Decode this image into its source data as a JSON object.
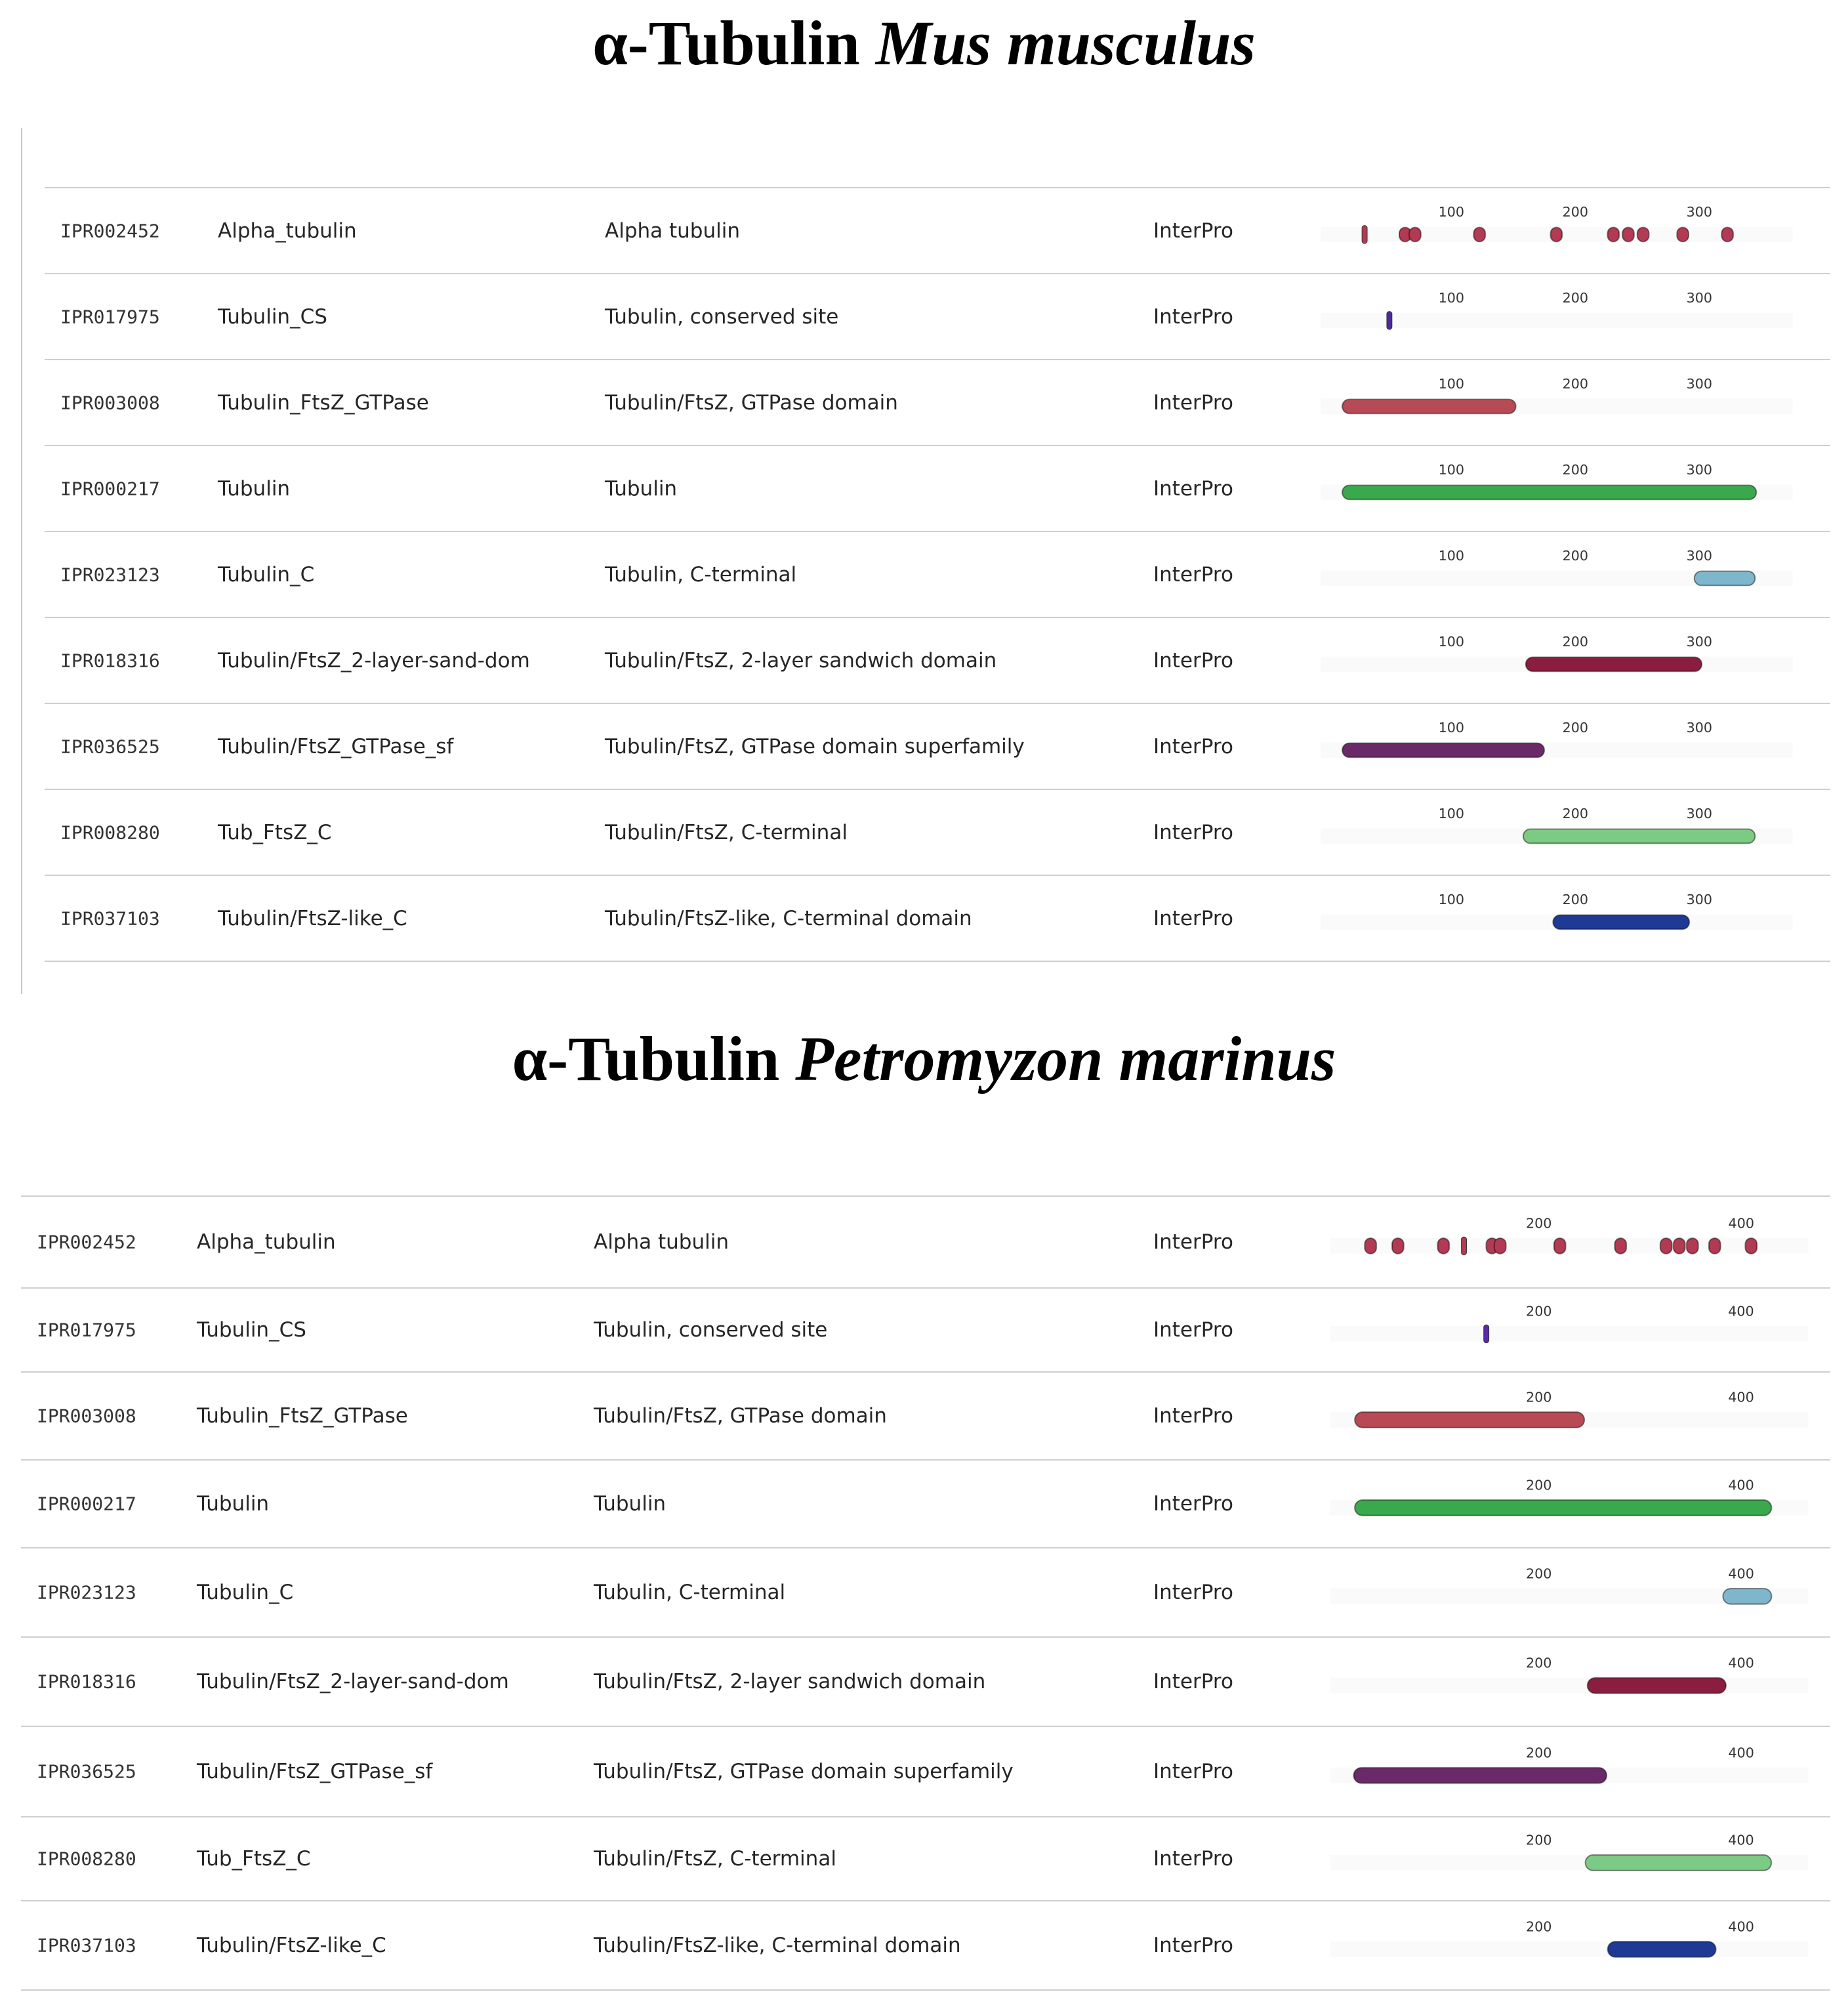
{
  "panels": [
    {
      "title_main": "α-Tubulin",
      "title_species": "Mus musculus",
      "ticks": [
        100,
        200,
        300
      ],
      "protein_length": 370,
      "source_rows": [
        {
          "accession": "IPR002452",
          "short_name": "Alpha_tubulin",
          "description": "Alpha tubulin",
          "source": "InterPro",
          "color": "#b23a52",
          "segments": [
            [
              30,
              31
            ],
            [
              58,
              62
            ],
            [
              66,
              70
            ],
            [
              118,
              121
            ],
            [
              180,
              184
            ],
            [
              226,
              231
            ],
            [
              238,
              245
            ],
            [
              250,
              258
            ],
            [
              282,
              286
            ],
            [
              318,
              322
            ]
          ]
        },
        {
          "accession": "IPR017975",
          "short_name": "Tubulin_CS",
          "description": "Tubulin, conserved site",
          "source": "InterPro",
          "color": "#4a2a9e",
          "segments": [
            [
              50,
              51
            ]
          ]
        },
        {
          "accession": "IPR003008",
          "short_name": "Tubulin_FtsZ_GTPase",
          "description": "Tubulin/FtsZ, GTPase domain",
          "source": "InterPro",
          "color": "#b84a55",
          "segments": [
            [
              12,
              152
            ]
          ]
        },
        {
          "accession": "IPR000217",
          "short_name": "Tubulin",
          "description": "Tubulin",
          "source": "InterPro",
          "color": "#3aa84c",
          "segments": [
            [
              12,
              346
            ]
          ]
        },
        {
          "accession": "IPR023123",
          "short_name": "Tubulin_C",
          "description": "Tubulin, C-terminal",
          "source": "InterPro",
          "color": "#7eb6cc",
          "segments": [
            [
              296,
              345
            ]
          ]
        },
        {
          "accession": "IPR018316",
          "short_name": "Tubulin/FtsZ_2-layer-sand-dom",
          "description": "Tubulin/FtsZ, 2-layer sandwich domain",
          "source": "InterPro",
          "color": "#8a1e40",
          "segments": [
            [
              160,
              302
            ]
          ]
        },
        {
          "accession": "IPR036525",
          "short_name": "Tubulin/FtsZ_GTPase_sf",
          "description": "Tubulin/FtsZ, GTPase domain superfamily",
          "source": "InterPro",
          "color": "#6a2a6a",
          "segments": [
            [
              12,
              175
            ]
          ]
        },
        {
          "accession": "IPR008280",
          "short_name": "Tub_FtsZ_C",
          "description": "Tubulin/FtsZ, C-terminal",
          "source": "InterPro",
          "color": "#7ccb84",
          "segments": [
            [
              158,
              345
            ]
          ]
        },
        {
          "accession": "IPR037103",
          "short_name": "Tubulin/FtsZ-like_C",
          "description": "Tubulin/FtsZ-like, C-terminal domain",
          "source": "InterPro",
          "color": "#1e3a94",
          "segments": [
            [
              182,
              292
            ]
          ]
        }
      ]
    },
    {
      "title_main": "α-Tubulin",
      "title_species": "Petromyzon marinus",
      "ticks": [
        200,
        400
      ],
      "protein_length": 460,
      "source_rows": [
        {
          "accession": "IPR002452",
          "short_name": "Alpha_tubulin",
          "description": "Alpha tubulin",
          "source": "InterPro",
          "color": "#b23a52",
          "segments": [
            [
              28,
              34
            ],
            [
              55,
              61
            ],
            [
              100,
              105
            ],
            [
              126,
              127
            ],
            [
              148,
              155
            ],
            [
              156,
              160
            ],
            [
              215,
              219
            ],
            [
              275,
              280
            ],
            [
              320,
              330
            ],
            [
              333,
              342
            ],
            [
              346,
              354
            ],
            [
              368,
              374
            ],
            [
              404,
              412
            ]
          ]
        },
        {
          "accession": "IPR017975",
          "short_name": "Tubulin_CS",
          "description": "Tubulin, conserved site",
          "source": "InterPro",
          "color": "#5a2aa8",
          "segments": [
            [
              148,
              149
            ]
          ]
        },
        {
          "accession": "IPR003008",
          "short_name": "Tubulin_FtsZ_GTPase",
          "description": "Tubulin/FtsZ, GTPase domain",
          "source": "InterPro",
          "color": "#b84a55",
          "segments": [
            [
              18,
              245
            ]
          ]
        },
        {
          "accession": "IPR000217",
          "short_name": "Tubulin",
          "description": "Tubulin",
          "source": "InterPro",
          "color": "#3aa84c",
          "segments": [
            [
              18,
              430
            ]
          ]
        },
        {
          "accession": "IPR023123",
          "short_name": "Tubulin_C",
          "description": "Tubulin, C-terminal",
          "source": "InterPro",
          "color": "#7eb6cc",
          "segments": [
            [
              382,
              430
            ]
          ]
        },
        {
          "accession": "IPR018316",
          "short_name": "Tubulin/FtsZ_2-layer-sand-dom",
          "description": "Tubulin/FtsZ, 2-layer sandwich domain",
          "source": "InterPro",
          "color": "#8a1e40",
          "segments": [
            [
              248,
              385
            ]
          ]
        },
        {
          "accession": "IPR036525",
          "short_name": "Tubulin/FtsZ_GTPase_sf",
          "description": "Tubulin/FtsZ, GTPase domain superfamily",
          "source": "InterPro",
          "color": "#6a2a6a",
          "segments": [
            [
              17,
              267
            ]
          ]
        },
        {
          "accession": "IPR008280",
          "short_name": "Tub_FtsZ_C",
          "description": "Tubulin/FtsZ, C-terminal",
          "source": "InterPro",
          "color": "#7ccb84",
          "segments": [
            [
              246,
              430
            ]
          ]
        },
        {
          "accession": "IPR037103",
          "short_name": "Tubulin/FtsZ-like_C",
          "description": "Tubulin/FtsZ-like, C-terminal domain",
          "source": "InterPro",
          "color": "#1e3a94",
          "segments": [
            [
              268,
              375
            ]
          ]
        }
      ]
    }
  ]
}
